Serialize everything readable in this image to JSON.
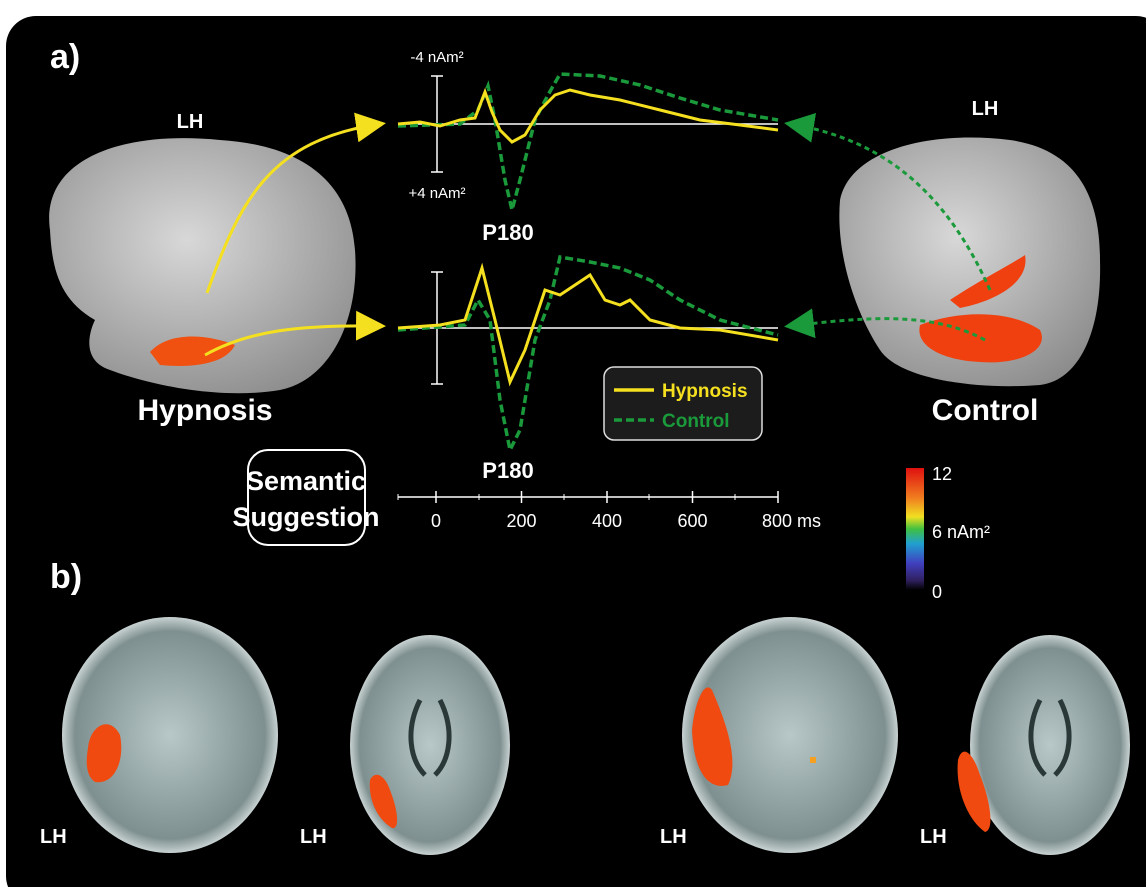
{
  "panel_a": {
    "label": "a)",
    "left_hemisphere": "LH",
    "right_hemisphere": "LH",
    "amplitude_top": "-4 nAm²",
    "amplitude_bottom": "+4 nAm²",
    "peak_labels": [
      "P180",
      "P180"
    ],
    "conditions": [
      "Hypnosis",
      "Control"
    ],
    "legend": [
      "Hypnosis",
      "Control"
    ],
    "box": [
      "Semantic",
      "Suggestion"
    ],
    "time_axis": {
      "ticks": [
        "0",
        "200",
        "400",
        "600",
        "800 ms"
      ]
    }
  },
  "colorbar": {
    "labels": [
      "12",
      "6 nAm²",
      "0"
    ]
  },
  "panel_b": {
    "label": "b)",
    "slice_labels": [
      "LH",
      "LH",
      "LH",
      "LH"
    ]
  }
}
